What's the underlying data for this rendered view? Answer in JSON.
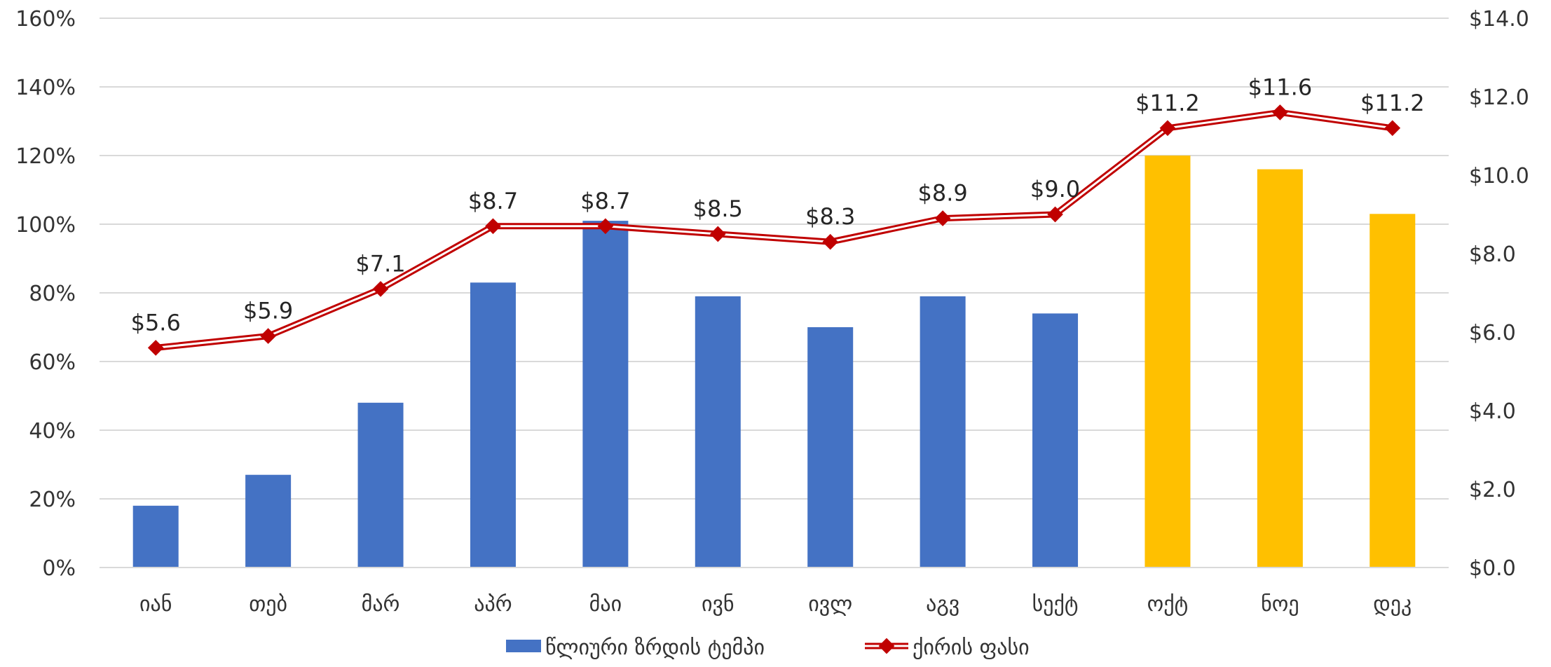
{
  "chart_data": {
    "type": "bar+line",
    "categories": [
      "იან",
      "თებ",
      "მარ",
      "აპრ",
      "მაი",
      "ივნ",
      "ივლ",
      "აგვ",
      "სექტ",
      "ოქტ",
      "ნოე",
      "დეკ"
    ],
    "bar_series": {
      "name": "წლიური ზრდის ტემპი",
      "values": [
        18,
        27,
        48,
        83,
        101,
        79,
        70,
        79,
        74,
        120,
        116,
        103
      ],
      "colors": [
        "#4472C4",
        "#4472C4",
        "#4472C4",
        "#4472C4",
        "#4472C4",
        "#4472C4",
        "#4472C4",
        "#4472C4",
        "#4472C4",
        "#FFC000",
        "#FFC000",
        "#FFC000"
      ]
    },
    "line_series": {
      "name": "ქირის ფასი",
      "values": [
        5.6,
        5.9,
        7.1,
        8.7,
        8.7,
        8.5,
        8.3,
        8.9,
        9.0,
        11.2,
        11.6,
        11.2
      ],
      "labels": [
        "$5.6",
        "$5.9",
        "$7.1",
        "$8.7",
        "$8.7",
        "$8.5",
        "$8.3",
        "$8.9",
        "$9.0",
        "$11.2",
        "$11.6",
        "$11.2"
      ],
      "color": "#C00000"
    },
    "y_left": {
      "min": 0,
      "max": 160,
      "step": 20,
      "ticks": [
        "0%",
        "20%",
        "40%",
        "60%",
        "80%",
        "100%",
        "120%",
        "140%",
        "160%"
      ]
    },
    "y_right": {
      "min": 0,
      "max": 14,
      "step": 2,
      "ticks": [
        "$0.0",
        "$2.0",
        "$4.0",
        "$6.0",
        "$8.0",
        "$10.0",
        "$12.0",
        "$14.0"
      ]
    },
    "grid": true,
    "legend_position": "bottom",
    "title": "",
    "xlabel": "",
    "ylabel": ""
  }
}
